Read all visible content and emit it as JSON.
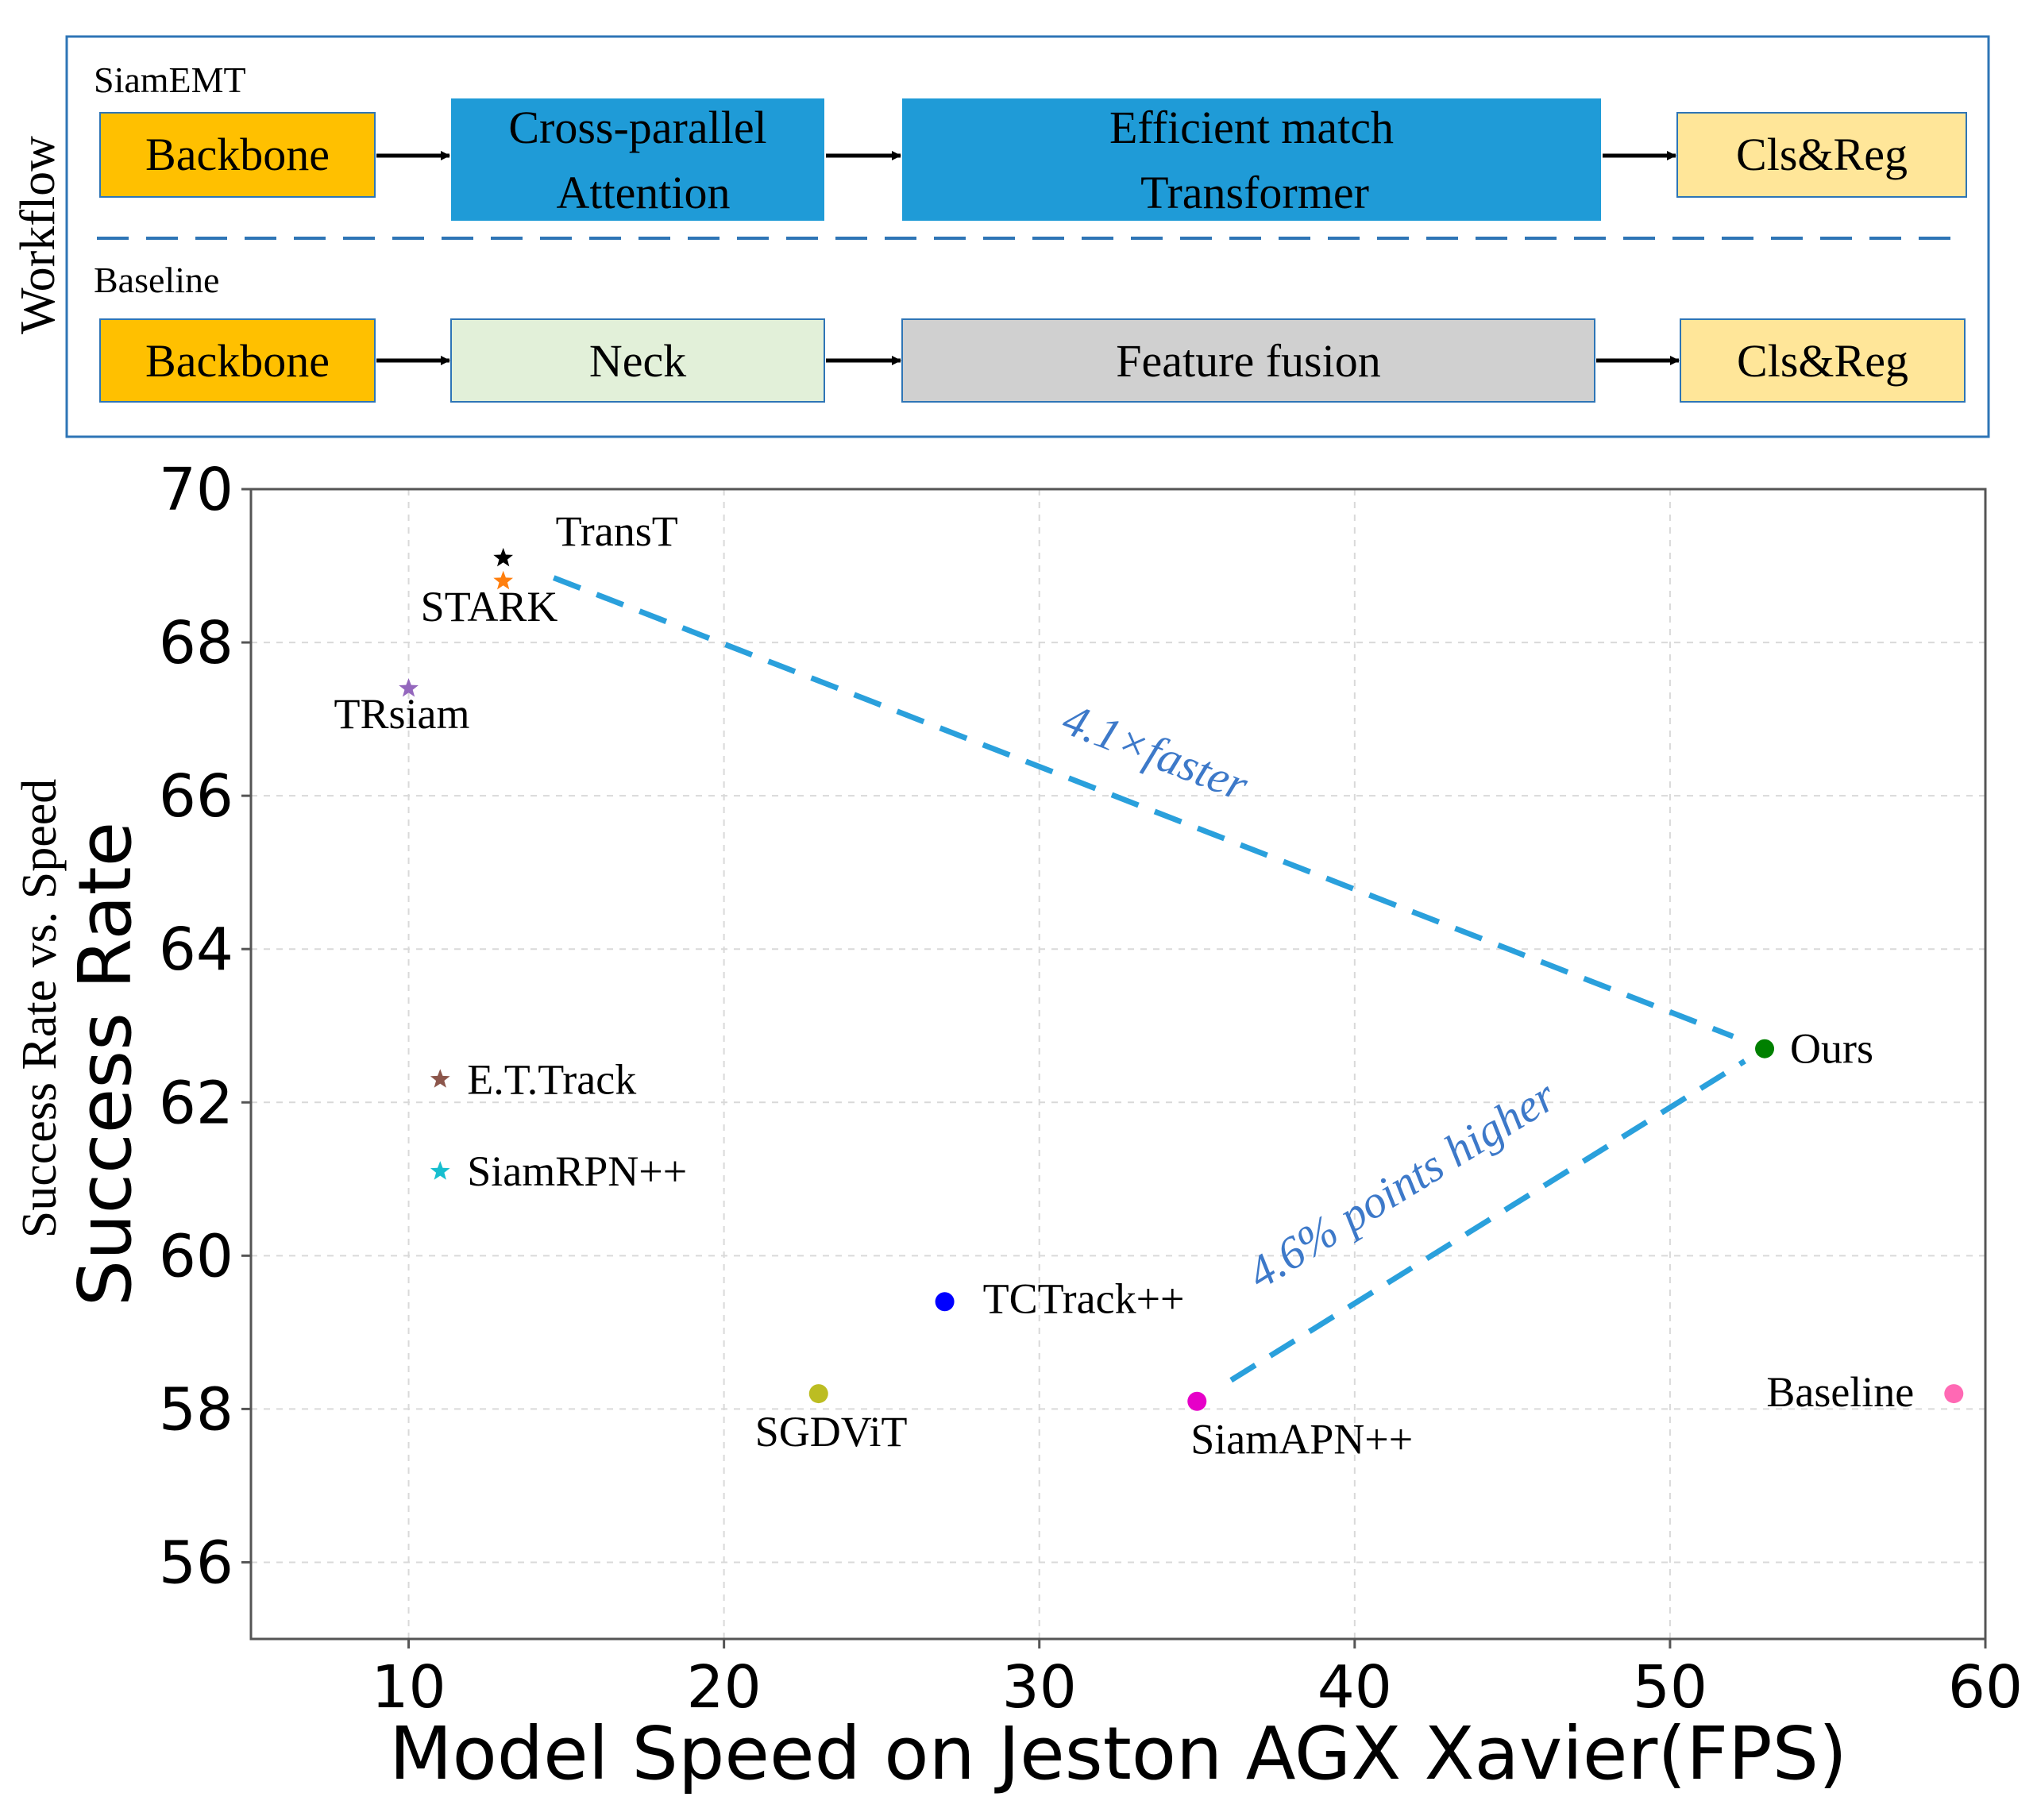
{
  "workflow": {
    "side_label": "Workflow",
    "siamemt": {
      "label": "SiamEMT",
      "boxes": [
        "Backbone",
        [
          "Cross-parallel",
          "Attention"
        ],
        [
          "Efficient match",
          "Transformer"
        ],
        "Cls&Reg"
      ]
    },
    "baseline": {
      "label": "Baseline",
      "boxes": [
        "Backbone",
        "Neck",
        "Feature fusion",
        "Cls&Reg"
      ]
    },
    "colors": {
      "backbone": "#ffc000",
      "attention": "#1f9bd7",
      "clsreg": "#ffe699",
      "neck": "#e2f0d9",
      "fusion": "#d0d0d0",
      "frame": "#2e75b6"
    }
  },
  "chart_data": {
    "type": "scatter",
    "side_title": "Success Rate vs. Speed",
    "xlabel": "Model Speed on Jeston AGX Xavier(FPS)",
    "ylabel": "Success Rate",
    "xlim": [
      5,
      60
    ],
    "ylim": [
      55,
      70
    ],
    "xticks": [
      10,
      20,
      30,
      40,
      50,
      60
    ],
    "yticks": [
      56,
      58,
      60,
      62,
      64,
      66,
      68,
      70
    ],
    "grid": true,
    "points": [
      {
        "name": "TransT",
        "x": 13,
        "y": 69.1,
        "marker": "star",
        "color": "#000000"
      },
      {
        "name": "STARK",
        "x": 13,
        "y": 68.8,
        "marker": "star",
        "color": "#ff7f0e"
      },
      {
        "name": "TRsiam",
        "x": 10,
        "y": 67.4,
        "marker": "star",
        "color": "#9467bd"
      },
      {
        "name": "E.T.Track",
        "x": 11,
        "y": 62.3,
        "marker": "star",
        "color": "#8c564b"
      },
      {
        "name": "SiamRPN++",
        "x": 11,
        "y": 61.1,
        "marker": "star",
        "color": "#17becf"
      },
      {
        "name": "TCTrack++",
        "x": 27,
        "y": 59.4,
        "marker": "circle",
        "color": "#0000ff"
      },
      {
        "name": "SGDViT",
        "x": 23,
        "y": 58.2,
        "marker": "circle",
        "color": "#bcbd22"
      },
      {
        "name": "SiamAPN++",
        "x": 35,
        "y": 58.1,
        "marker": "circle",
        "color": "#e600c8"
      },
      {
        "name": "Ours",
        "x": 53,
        "y": 62.7,
        "marker": "circle",
        "color": "#008000"
      },
      {
        "name": "Baseline",
        "x": 59,
        "y": 58.2,
        "marker": "circle",
        "color": "#ff69b4"
      }
    ],
    "annotations": [
      {
        "text": "4.1×faster",
        "from": "TransT",
        "to": "Ours",
        "color": "#3d79c9"
      },
      {
        "text": "4.6% points higher",
        "from": "SiamAPN++",
        "to": "Ours",
        "color": "#3d79c9"
      }
    ],
    "dash_color": "#2aa0dc"
  }
}
